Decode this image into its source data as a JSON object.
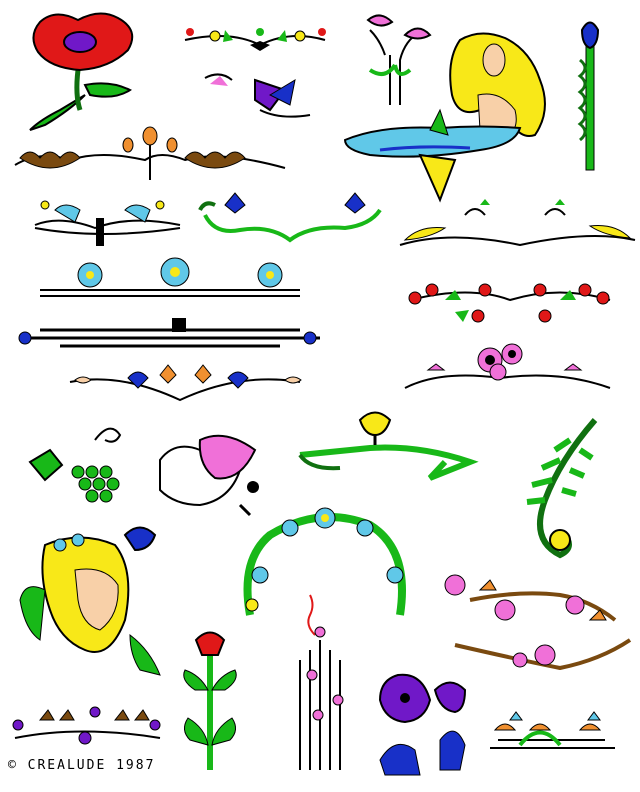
{
  "copyright": "© CREALUDE 1987",
  "colors": {
    "red": "#e01818",
    "green": "#18b818",
    "darkgreen": "#107010",
    "blue": "#1830c8",
    "lightblue": "#60c8e8",
    "pink": "#f070d8",
    "magenta": "#c01880",
    "purple": "#7018c8",
    "yellow": "#f8e818",
    "orange": "#f09030",
    "brown": "#7a4a10",
    "black": "#000000",
    "skin": "#f8d0a8"
  },
  "icons": [
    "poppy-flower",
    "small-flower-border",
    "pink-lily",
    "blue-thistle",
    "purple-flower-ornament",
    "mermaid",
    "acorn-oak-border",
    "wave-border",
    "blue-flower-vine",
    "art-nouveau-scroll",
    "daisy-border",
    "red-berry-border",
    "geometric-border",
    "tulip-border",
    "pink-poppy-arch",
    "grape-cluster",
    "pink-tulip-ribbon",
    "yellow-lily-vine",
    "fern-spiral",
    "woman-face",
    "daisy-wreath",
    "pink-rose-branch",
    "red-thistle",
    "stylized-tree",
    "purple-morning-glory",
    "purple-berry-border",
    "lily-pond-border"
  ]
}
